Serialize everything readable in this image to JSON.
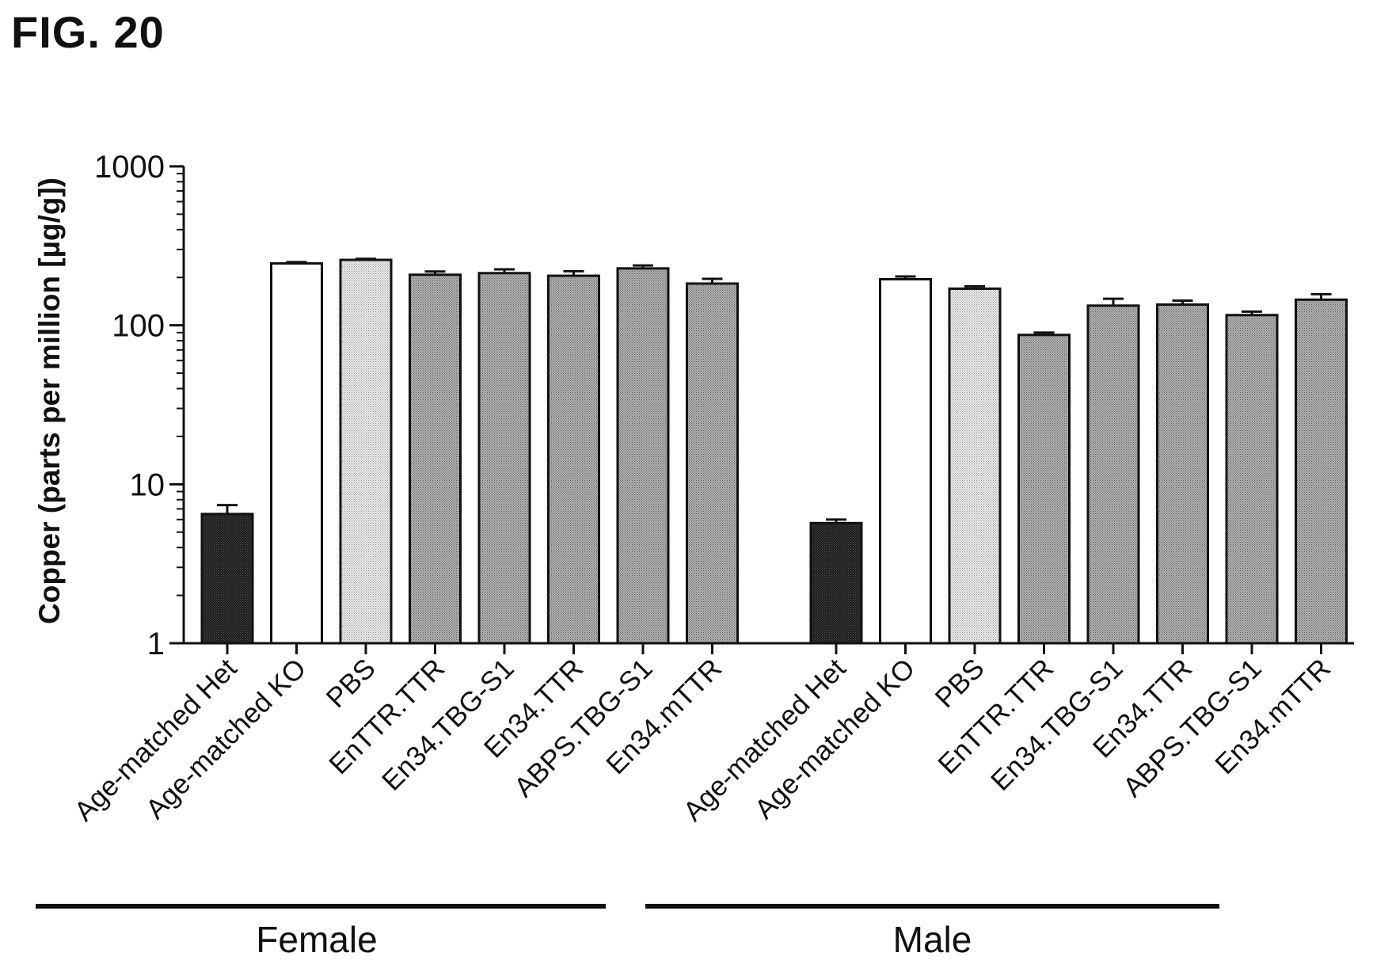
{
  "figure_title": "FIG. 20",
  "chart_data": {
    "type": "bar",
    "title": "",
    "xlabel": "",
    "ylabel": "Copper (parts per million [µg/g])",
    "yscale": "log",
    "ylim": [
      1,
      1000
    ],
    "yticks": [
      1,
      10,
      100,
      1000
    ],
    "ytick_labels": [
      "1",
      "10",
      "100",
      "1000"
    ],
    "grid": false,
    "legend": "none",
    "groups": [
      {
        "name": "Female",
        "categories": [
          "Age-matched Het",
          "Age-matched KO",
          "PBS",
          "EnTTR.TTR",
          "En34.TBG-S1",
          "En34.TTR",
          "ABPS.TBG-S1",
          "En34.mTTR"
        ],
        "values": [
          6.5,
          245,
          258,
          208,
          213,
          205,
          228,
          183
        ],
        "errors": [
          0.9,
          5,
          4,
          10,
          12,
          14,
          10,
          13
        ]
      },
      {
        "name": "Male",
        "categories": [
          "Age-matched Het",
          "Age-matched KO",
          "PBS",
          "EnTTR.TTR",
          "En34.TBG-S1",
          "En34.TTR",
          "ABPS.TBG-S1",
          "En34.mTTR"
        ],
        "values": [
          5.7,
          195,
          170,
          87,
          133,
          135,
          116,
          145
        ],
        "errors": [
          0.3,
          8,
          6,
          3,
          14,
          8,
          6,
          12
        ]
      }
    ],
    "bar_colors": [
      "#1a1a1a",
      "#ffffff",
      "#e6e6e6",
      "#a8a8a8",
      "#a8a8a8",
      "#a8a8a8",
      "#a8a8a8",
      "#a8a8a8"
    ]
  }
}
